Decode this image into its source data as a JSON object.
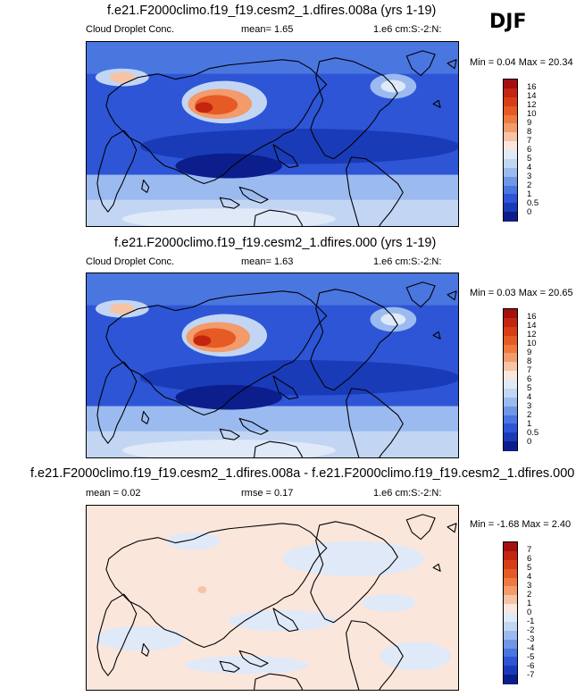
{
  "season": "DJF",
  "panels": [
    {
      "title": "f.e21.F2000climo.f19_f19.cesm2_1.dfires.008a (yrs 1-19)",
      "left_label": "Cloud Droplet Conc.",
      "center_label": "mean=  1.65",
      "right_label": "1.e6 cm:S:-2:N:",
      "minmax": "Min =  0.04 Max = 20.34",
      "colorbar_levels": [
        "16",
        "14",
        "12",
        "10",
        "9",
        "8",
        "7",
        "6",
        "5",
        "4",
        "3",
        "2",
        "1",
        "0.5",
        "0"
      ],
      "colorbar_colors": [
        "#a50f0f",
        "#c4250f",
        "#d83e15",
        "#e65a25",
        "#ef7a40",
        "#f39b6a",
        "#f7c3a5",
        "#fbe6dc",
        "#dfe9f8",
        "#c2d6f4",
        "#9bbaf0",
        "#6f97e6",
        "#4a76e0",
        "#2d55d6",
        "#1a3bb8",
        "#0b1e8c"
      ]
    },
    {
      "title": "f.e21.F2000climo.f19_f19.cesm2_1.dfires.000 (yrs 1-19)",
      "left_label": "Cloud Droplet Conc.",
      "center_label": "mean=  1.63",
      "right_label": "1.e6 cm:S:-2:N:",
      "minmax": "Min =  0.03 Max = 20.65",
      "colorbar_levels": [
        "16",
        "14",
        "12",
        "10",
        "9",
        "8",
        "7",
        "6",
        "5",
        "4",
        "3",
        "2",
        "1",
        "0.5",
        "0"
      ],
      "colorbar_colors": [
        "#a50f0f",
        "#c4250f",
        "#d83e15",
        "#e65a25",
        "#ef7a40",
        "#f39b6a",
        "#f7c3a5",
        "#fbe6dc",
        "#dfe9f8",
        "#c2d6f4",
        "#9bbaf0",
        "#6f97e6",
        "#4a76e0",
        "#2d55d6",
        "#1a3bb8",
        "#0b1e8c"
      ]
    },
    {
      "title": "f.e21.F2000climo.f19_f19.cesm2_1.dfires.008a - f.e21.F2000climo.f19_f19.cesm2_1.dfires.000",
      "left_label": "mean =  0.02",
      "center_label": "rmse =  0.17",
      "right_label": "1.e6 cm:S:-2:N:",
      "minmax": "Min = -1.68 Max =  2.40",
      "colorbar_levels": [
        "7",
        "6",
        "5",
        "4",
        "3",
        "2",
        "1",
        "0",
        "-1",
        "-2",
        "-3",
        "-4",
        "-5",
        "-6",
        "-7"
      ],
      "colorbar_colors": [
        "#a50f0f",
        "#c4250f",
        "#d83e15",
        "#e65a25",
        "#ef7a40",
        "#f39b6a",
        "#f7c3a5",
        "#fbe6dc",
        "#dfe9f8",
        "#c2d6f4",
        "#9bbaf0",
        "#6f97e6",
        "#4a76e0",
        "#2d55d6",
        "#1a3bb8",
        "#0b1e8c"
      ]
    }
  ]
}
